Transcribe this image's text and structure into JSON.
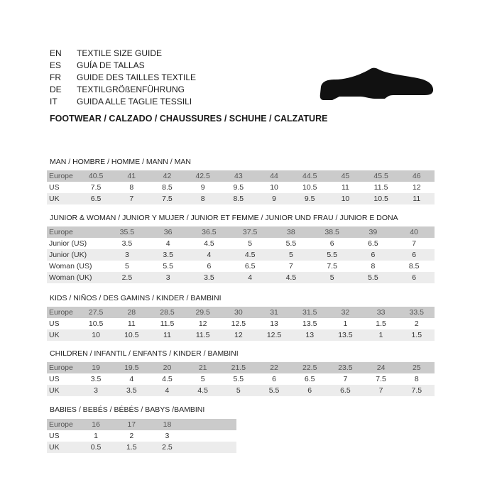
{
  "header": {
    "languages": [
      {
        "code": "EN",
        "text": "TEXTILE SIZE GUIDE"
      },
      {
        "code": "ES",
        "text": "GUÍA DE TALLAS"
      },
      {
        "code": "FR",
        "text": "GUIDE DES TAILLES TEXTILE"
      },
      {
        "code": "DE",
        "text": "TEXTILGRÖßENFÜHRUNG"
      },
      {
        "code": "IT",
        "text": "GUIDA ALLE TAGLIE TESSILI"
      }
    ],
    "footwear": "FOOTWEAR / CALZADO / CHAUSSURES / SCHUHE / CALZATURE",
    "icon": "shoe-icon"
  },
  "sections": [
    {
      "title": "MAN / HOMBRE / HOMME / MANN / MAN",
      "rows": [
        {
          "label": "Europe",
          "values": [
            "40.5",
            "41",
            "42",
            "42.5",
            "43",
            "44",
            "44.5",
            "45",
            "45.5",
            "46"
          ]
        },
        {
          "label": "US",
          "values": [
            "7.5",
            "8",
            "8.5",
            "9",
            "9.5",
            "10",
            "10.5",
            "11",
            "11.5",
            "12"
          ]
        },
        {
          "label": "UK",
          "values": [
            "6.5",
            "7",
            "7.5",
            "8",
            "8.5",
            "9",
            "9.5",
            "10",
            "10.5",
            "11"
          ]
        }
      ]
    },
    {
      "title": "JUNIOR & WOMAN / JUNIOR Y MUJER / JUNIOR ET FEMME / JUNIOR UND FRAU / JUNIOR E DONA",
      "rows": [
        {
          "label": "Europe",
          "values": [
            "35.5",
            "36",
            "36.5",
            "37.5",
            "38",
            "38.5",
            "39",
            "40"
          ]
        },
        {
          "label": "Junior (US)",
          "values": [
            "3.5",
            "4",
            "4.5",
            "5",
            "5.5",
            "6",
            "6.5",
            "7"
          ]
        },
        {
          "label": "Junior (UK)",
          "values": [
            "3",
            "3.5",
            "4",
            "4.5",
            "5",
            "5.5",
            "6",
            "6"
          ]
        },
        {
          "label": "Woman (US)",
          "values": [
            "5",
            "5.5",
            "6",
            "6.5",
            "7",
            "7.5",
            "8",
            "8.5"
          ]
        },
        {
          "label": "Woman (UK)",
          "values": [
            "2.5",
            "3",
            "3.5",
            "4",
            "4.5",
            "5",
            "5.5",
            "6"
          ]
        }
      ]
    },
    {
      "title": "KIDS / NIÑOS / DES GAMINS / KINDER / BAMBINI",
      "rows": [
        {
          "label": "Europe",
          "values": [
            "27.5",
            "28",
            "28.5",
            "29.5",
            "30",
            "31",
            "31.5",
            "32",
            "33",
            "33.5"
          ]
        },
        {
          "label": "US",
          "values": [
            "10.5",
            "11",
            "11.5",
            "12",
            "12.5",
            "13",
            "13.5",
            "1",
            "1.5",
            "2"
          ]
        },
        {
          "label": "UK",
          "values": [
            "10",
            "10.5",
            "11",
            "11.5",
            "12",
            "12.5",
            "13",
            "13.5",
            "1",
            "1.5"
          ]
        }
      ]
    },
    {
      "title": "CHILDREN / INFANTIL / ENFANTS / KINDER / BAMBINI",
      "rows": [
        {
          "label": "Europe",
          "values": [
            "19",
            "19.5",
            "20",
            "21",
            "21.5",
            "22",
            "22.5",
            "23.5",
            "24",
            "25"
          ]
        },
        {
          "label": "US",
          "values": [
            "3.5",
            "4",
            "4.5",
            "5",
            "5.5",
            "6",
            "6.5",
            "7",
            "7.5",
            "8"
          ]
        },
        {
          "label": "UK",
          "values": [
            "3",
            "3.5",
            "4",
            "4.5",
            "5",
            "5.5",
            "6",
            "6.5",
            "7",
            "7.5"
          ]
        }
      ]
    },
    {
      "title": "BABIES  / BEBÉS / BÉBÉS / BABYS /BAMBINI",
      "rows": [
        {
          "label": "Europe",
          "values": [
            "16",
            "17",
            "18"
          ]
        },
        {
          "label": "US",
          "values": [
            "1",
            "2",
            "3"
          ]
        },
        {
          "label": "UK",
          "values": [
            "0.5",
            "1.5",
            "2.5"
          ]
        }
      ]
    }
  ]
}
